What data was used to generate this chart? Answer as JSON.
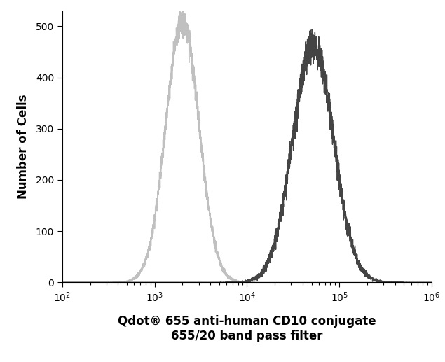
{
  "xlabel_line1": "Qdot® 655 anti-human CD10 conjugate",
  "xlabel_line2": "655/20 band pass filter",
  "ylabel": "Number of Cells",
  "xlim": [
    100,
    1000000
  ],
  "ylim": [
    0,
    530
  ],
  "yticks": [
    0,
    100,
    200,
    300,
    400,
    500
  ],
  "background_color": "#ffffff",
  "curve1": {
    "color": "#c0c0c0",
    "peak_x": 2000,
    "peak_y": 510,
    "sigma_log": 0.18
  },
  "curve2": {
    "color": "#444444",
    "peak_x": 52000,
    "peak_y": 465,
    "sigma_log": 0.22
  },
  "figure_width": 6.35,
  "figure_height": 5.17,
  "dpi": 100
}
